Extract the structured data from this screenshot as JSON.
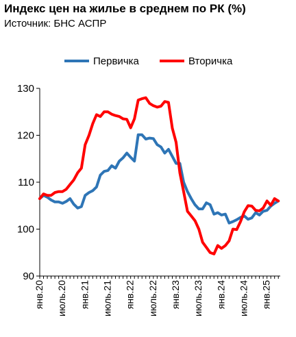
{
  "header": {
    "title": "Индекс цен на жилье в среднем по РК (%)",
    "subtitle": "Источник: БНС АСПР"
  },
  "chart_data": {
    "type": "line",
    "title": "Индекс цен на жилье в среднем по РК (%)",
    "xlabel": "",
    "ylabel": "",
    "ylim": [
      90,
      130
    ],
    "yticks": [
      90,
      100,
      110,
      120,
      130
    ],
    "grid": false,
    "legend": "top",
    "x_tick_labels": [
      "янв.20",
      "июль.20",
      "янв.21",
      "июль.21",
      "янв.22",
      "июль.22",
      "янв.23",
      "июль.23",
      "янв.24",
      "июль.24",
      "янв.25"
    ],
    "x": [
      "2020-01",
      "2020-02",
      "2020-03",
      "2020-04",
      "2020-05",
      "2020-06",
      "2020-07",
      "2020-08",
      "2020-09",
      "2020-10",
      "2020-11",
      "2020-12",
      "2021-01",
      "2021-02",
      "2021-03",
      "2021-04",
      "2021-05",
      "2021-06",
      "2021-07",
      "2021-08",
      "2021-09",
      "2021-10",
      "2021-11",
      "2021-12",
      "2022-01",
      "2022-02",
      "2022-03",
      "2022-04",
      "2022-05",
      "2022-06",
      "2022-07",
      "2022-08",
      "2022-09",
      "2022-10",
      "2022-11",
      "2022-12",
      "2023-01",
      "2023-02",
      "2023-03",
      "2023-04",
      "2023-05",
      "2023-06",
      "2023-07",
      "2023-08",
      "2023-09",
      "2023-10",
      "2023-11",
      "2023-12",
      "2024-01",
      "2024-02",
      "2024-03",
      "2024-04",
      "2024-05",
      "2024-06",
      "2024-07",
      "2024-08",
      "2024-09",
      "2024-10",
      "2024-11",
      "2024-12",
      "2025-01",
      "2025-02",
      "2025-03",
      "2025-04"
    ],
    "series": [
      {
        "name": "Первичка",
        "color": "#2e75b6",
        "values": [
          106.5,
          107.2,
          106.8,
          106.2,
          105.8,
          105.8,
          105.5,
          105.9,
          106.5,
          105.3,
          104.5,
          104.8,
          107.2,
          107.8,
          108.2,
          109.0,
          111.5,
          112.3,
          112.5,
          113.5,
          113.0,
          114.5,
          115.2,
          116.2,
          115.3,
          114.5,
          120.1,
          120.1,
          119.2,
          119.4,
          119.3,
          118.0,
          117.5,
          116.2,
          117.0,
          115.5,
          114.0,
          114.0,
          110.0,
          108.0,
          106.5,
          105.2,
          104.3,
          104.3,
          105.6,
          105.2,
          103.2,
          103.5,
          103.0,
          103.2,
          101.3,
          101.6,
          102.0,
          102.5,
          102.8,
          102.1,
          102.4,
          103.5,
          103.0,
          103.8,
          104.0,
          104.9,
          105.5,
          106.0
        ]
      },
      {
        "name": "Вторичка",
        "color": "#ff0000",
        "values": [
          106.5,
          107.5,
          107.2,
          107.2,
          107.8,
          108.0,
          108.0,
          108.5,
          109.5,
          110.5,
          112.0,
          113.0,
          118.0,
          120.0,
          122.5,
          124.4,
          124.0,
          125.0,
          125.0,
          124.5,
          124.2,
          124.0,
          123.5,
          123.4,
          121.6,
          123.5,
          127.5,
          127.8,
          128.0,
          126.8,
          126.3,
          126.0,
          126.2,
          127.2,
          127.0,
          121.5,
          118.5,
          112.0,
          108.0,
          103.8,
          102.8,
          101.8,
          100.0,
          97.2,
          96.1,
          95.0,
          94.7,
          96.5,
          95.9,
          96.5,
          97.5,
          100.0,
          99.9,
          101.6,
          103.7,
          105.0,
          104.9,
          104.0,
          103.9,
          104.5,
          106.0,
          105.1,
          106.5,
          106.0
        ]
      }
    ]
  }
}
